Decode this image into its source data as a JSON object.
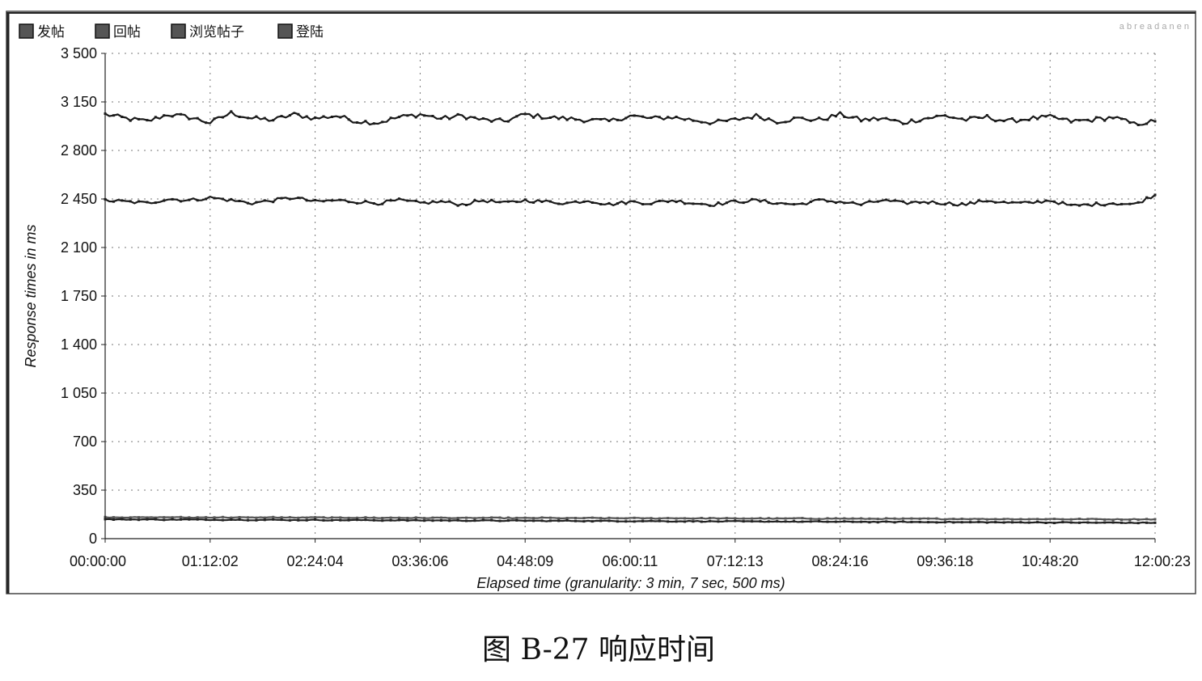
{
  "chart_data": {
    "type": "line",
    "legend": {
      "placement": "top-left",
      "entries": [
        "发帖",
        "回帖",
        "浏览帖子",
        "登陆"
      ]
    },
    "xlabel": "Elapsed time (granularity: 3 min, 7 sec, 500 ms)",
    "ylabel": "Response times in ms",
    "ylim": [
      0,
      3500
    ],
    "y_ticks": [
      "3 500",
      "3 150",
      "2 800",
      "2 450",
      "2 100",
      "1 750",
      "1 400",
      "1 050",
      "700",
      "350",
      "0"
    ],
    "x_ticks": [
      "00:00:00",
      "01:12:02",
      "02:24:04",
      "03:36:06",
      "04:48:09",
      "06:00:11",
      "07:12:13",
      "08:24:16",
      "09:36:18",
      "10:48:20",
      "12:00:23"
    ],
    "grid": true,
    "series": [
      {
        "name": "发帖",
        "color": "#1a1a1a",
        "base": 3030,
        "noise": 35,
        "values": [
          3060,
          3030,
          3010,
          3060,
          3040,
          3000,
          3070,
          3030,
          3020,
          3060,
          3030,
          3050,
          3010,
          3000,
          3040,
          3060,
          3030,
          3050,
          3020,
          3010,
          3060,
          3040,
          3030,
          3020,
          3010,
          3050,
          3030,
          3040,
          3020,
          3000,
          3020,
          3050,
          3010,
          3030,
          3020,
          3060,
          3020,
          3030,
          3000,
          3030,
          3050,
          3020,
          3040,
          3010,
          3030,
          3040,
          3010,
          3020,
          3040,
          2990,
          3010
        ]
      },
      {
        "name": "回帖",
        "color": "#1a1a1a",
        "base": 2430,
        "noise": 25,
        "values": [
          2440,
          2430,
          2420,
          2450,
          2440,
          2460,
          2440,
          2420,
          2440,
          2460,
          2430,
          2440,
          2430,
          2420,
          2440,
          2420,
          2430,
          2410,
          2440,
          2420,
          2440,
          2430,
          2420,
          2440,
          2410,
          2430,
          2420,
          2440,
          2420,
          2410,
          2430,
          2440,
          2420,
          2410,
          2440,
          2430,
          2410,
          2440,
          2420,
          2430,
          2420,
          2410,
          2440,
          2420,
          2420,
          2440,
          2400,
          2410,
          2420,
          2410,
          2480
        ]
      },
      {
        "name": "浏览帖子",
        "color": "#555555",
        "base": 150,
        "noise": 6,
        "values": [
          155,
          154,
          153,
          155,
          152,
          154,
          153,
          152,
          154,
          151,
          153,
          150,
          152,
          150,
          151,
          149,
          151,
          148,
          150,
          149,
          148,
          150,
          147,
          149,
          147,
          148,
          146,
          148,
          146,
          147,
          145,
          146,
          144,
          146,
          144,
          145,
          143,
          144,
          142,
          144,
          142,
          143,
          141,
          142,
          140,
          142,
          140,
          141,
          139,
          140,
          140
        ]
      },
      {
        "name": "登陆",
        "color": "#222222",
        "base": 130,
        "noise": 6,
        "values": [
          140,
          138,
          139,
          137,
          138,
          136,
          137,
          135,
          136,
          134,
          135,
          133,
          134,
          132,
          133,
          131,
          132,
          130,
          131,
          129,
          130,
          128,
          129,
          127,
          128,
          126,
          127,
          125,
          126,
          124,
          125,
          123,
          124,
          122,
          123,
          121,
          122,
          120,
          121,
          119,
          120,
          118,
          119,
          117,
          118,
          116,
          117,
          115,
          116,
          114,
          115
        ]
      }
    ]
  },
  "caption": "图 B-27    响应时间",
  "top_right_text": "a b r e a d a n e n"
}
